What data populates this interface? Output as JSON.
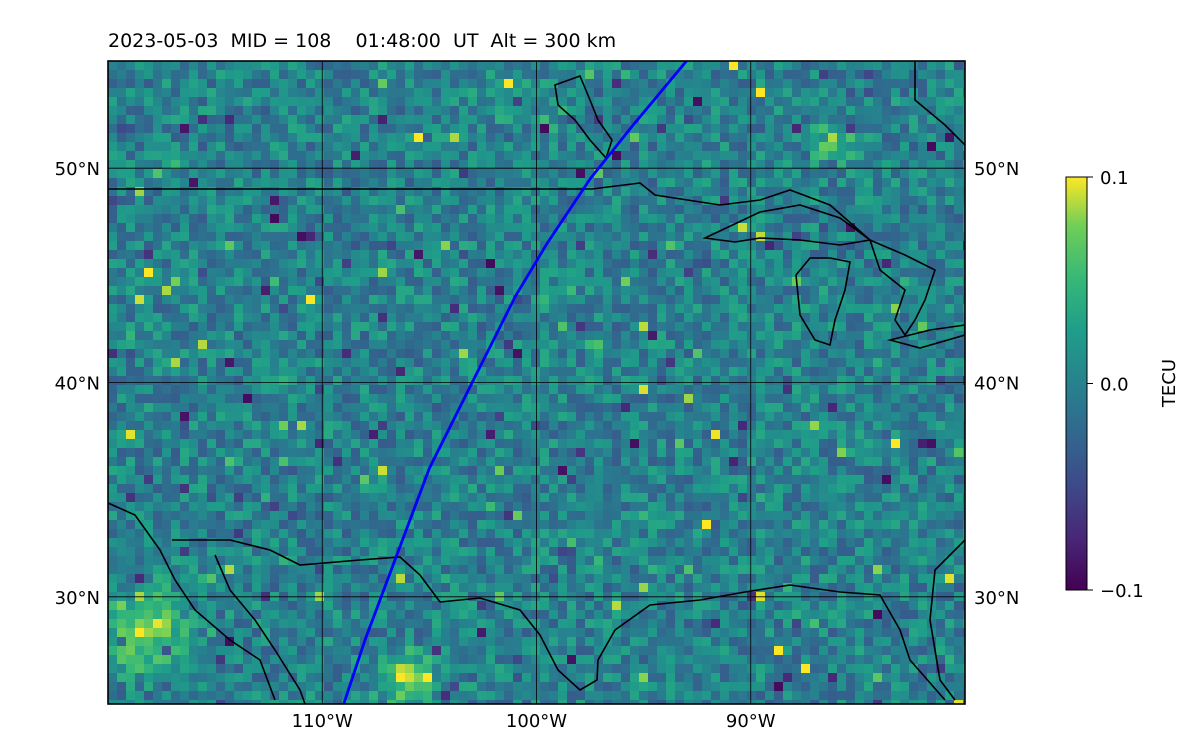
{
  "title": "2023-05-03  MID = 108    01:48:00  UT  Alt = 300 km",
  "map": {
    "lon_range": [
      -120,
      -80
    ],
    "lat_range": [
      25,
      55
    ],
    "gridlines": true,
    "coastlines": true,
    "x_ticks": [
      {
        "lon": -110,
        "label": "110°W"
      },
      {
        "lon": -100,
        "label": "100°W"
      },
      {
        "lon": -90,
        "label": "90°W"
      }
    ],
    "y_ticks": [
      {
        "lat": 50,
        "label": "50°N"
      },
      {
        "lat": 40,
        "label": "40°N"
      },
      {
        "lat": 30,
        "label": "30°N"
      }
    ],
    "track_color": "#0000ff",
    "track": [
      [
        -109,
        25
      ],
      [
        -108,
        28
      ],
      [
        -106.5,
        32
      ],
      [
        -105,
        36
      ],
      [
        -103,
        40
      ],
      [
        -101,
        44
      ],
      [
        -99.5,
        46.5
      ],
      [
        -97.5,
        49.5
      ],
      [
        -95.5,
        52
      ],
      [
        -93,
        55
      ]
    ]
  },
  "colorbar": {
    "label": "TECU",
    "vmin": -0.1,
    "vmax": 0.1,
    "colormap": "viridis",
    "ticks": [
      {
        "value": 0.1,
        "label": "0.1"
      },
      {
        "value": 0.0,
        "label": "0.0"
      },
      {
        "value": -0.1,
        "label": "−0.1"
      }
    ]
  }
}
